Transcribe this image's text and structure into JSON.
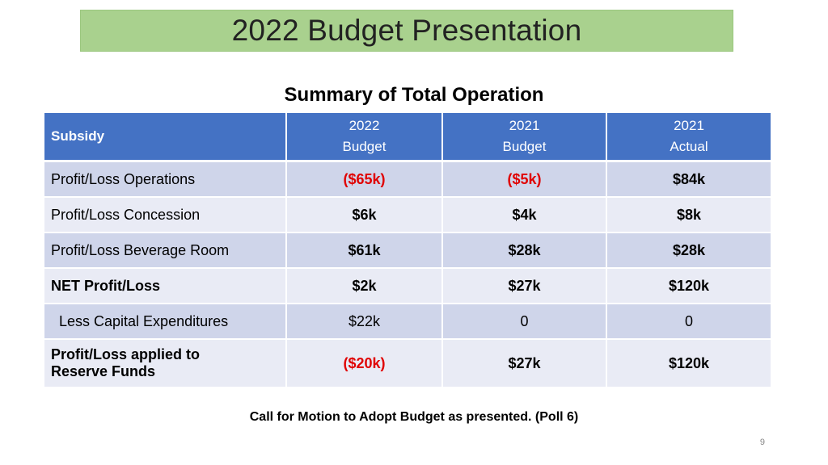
{
  "slide": {
    "title": "2022 Budget Presentation",
    "subtitle": "Summary of Total Operation",
    "footer": "Call for Motion to Adopt Budget as presented. (Poll 6)",
    "page_number": "9"
  },
  "table": {
    "headers": [
      {
        "line1": "Subsidy",
        "line2": ""
      },
      {
        "line1": "2022",
        "line2": "Budget"
      },
      {
        "line1": "2021",
        "line2": "Budget"
      },
      {
        "line1": "2021",
        "line2": "Actual"
      }
    ],
    "rows": [
      {
        "label": "Profit/Loss Operations",
        "label2": "",
        "values": [
          "($65k)",
          "($5k)",
          "$84k"
        ],
        "negative": [
          true,
          true,
          false
        ]
      },
      {
        "label": "Profit/Loss Concession",
        "label2": "",
        "values": [
          "$6k",
          "$4k",
          "$8k"
        ],
        "negative": [
          false,
          false,
          false
        ]
      },
      {
        "label": "Profit/Loss Beverage Room",
        "label2": "",
        "values": [
          "$61k",
          "$28k",
          "$28k"
        ],
        "negative": [
          false,
          false,
          false
        ]
      },
      {
        "label": "NET Profit/Loss",
        "label2": "",
        "values": [
          "$2k",
          "$27k",
          "$120k"
        ],
        "negative": [
          false,
          false,
          false
        ]
      },
      {
        "label": "Less Capital Expenditures",
        "label2": "",
        "values": [
          "$22k",
          "0",
          "0"
        ],
        "negative": [
          false,
          false,
          false
        ]
      },
      {
        "label": "Profit/Loss applied to",
        "label2": "Reserve Funds",
        "values": [
          "($20k)",
          "$27k",
          "$120k"
        ],
        "negative": [
          true,
          false,
          false
        ]
      }
    ]
  },
  "colors": {
    "title_bar": "#a9d18e",
    "header_bg": "#4472c4",
    "row_odd": "#cfd5ea",
    "row_even": "#e9ebf5",
    "negative_text": "#e00000"
  }
}
